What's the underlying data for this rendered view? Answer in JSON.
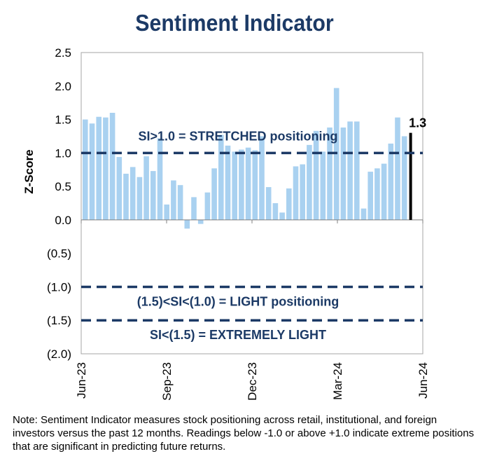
{
  "chart_data": {
    "type": "bar",
    "title": "Sentiment Indicator",
    "ylabel": "Z-Score",
    "xlabel": "",
    "ylim": [
      -2.0,
      2.5
    ],
    "yticks": [
      2.5,
      2.0,
      1.5,
      1.0,
      0.5,
      0.0,
      -0.5,
      -1.0,
      -1.5,
      -2.0
    ],
    "ytick_labels": [
      "2.5",
      "2.0",
      "1.5",
      "1.0",
      "0.5",
      "0.0",
      "(0.5)",
      "(1.0)",
      "(1.5)",
      "(2.0)"
    ],
    "xtick_labels": [
      "Jun-23",
      "Sep-23",
      "Dec-23",
      "Mar-24",
      "Jun-24"
    ],
    "values": [
      1.5,
      1.44,
      1.54,
      1.53,
      1.6,
      0.94,
      0.69,
      0.79,
      0.64,
      0.95,
      0.73,
      1.22,
      0.23,
      0.59,
      0.52,
      -0.13,
      0.34,
      -0.06,
      0.41,
      0.77,
      1.27,
      1.11,
      1.02,
      1.05,
      1.08,
      1.04,
      1.25,
      0.49,
      0.25,
      0.11,
      0.47,
      0.8,
      0.83,
      1.12,
      1.33,
      1.02,
      1.38,
      1.97,
      1.38,
      1.47,
      1.47,
      0.17,
      0.72,
      0.77,
      0.84,
      1.14,
      1.53,
      1.25
    ],
    "latest_value": 1.3,
    "latest_label": "1.3",
    "bar_color": "#a9d1f0",
    "latest_color": "#000000",
    "threshold_color": "#1c3a66",
    "thresholds": [
      1.0,
      -1.0,
      -1.5
    ],
    "annotations": [
      {
        "text": "SI>1.0 = STRETCHED positioning",
        "y": 1.25
      },
      {
        "text": "(1.5)<SI<(1.0) = LIGHT positioning",
        "y": -1.22
      },
      {
        "text": "SI<(1.5) = EXTREMELY LIGHT",
        "y": -1.72
      }
    ],
    "grid": false
  },
  "note": "Note: Sentiment Indicator measures stock positioning across retail, institutional, and foreign investors versus the past 12 months. Readings below -1.0 or above +1.0 indicate extreme positions that are significant in predicting future returns."
}
